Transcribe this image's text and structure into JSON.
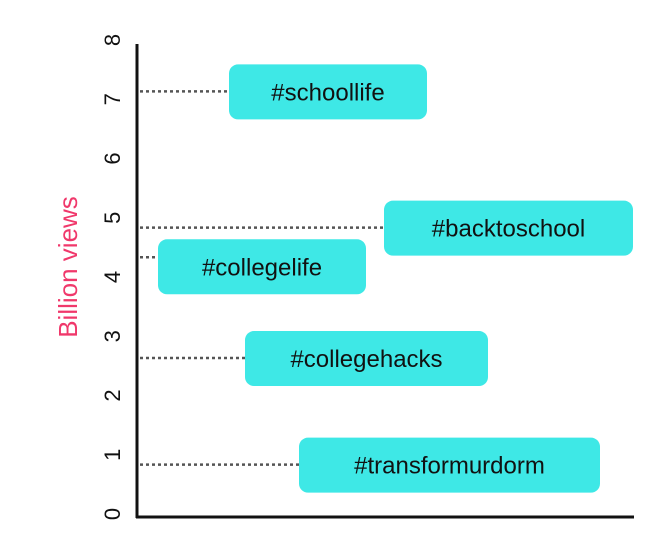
{
  "chart_data": {
    "type": "scatter",
    "title": "",
    "xlabel": "",
    "ylabel": "Billion views",
    "ylim": [
      0,
      8
    ],
    "yticks": [
      "0",
      "1",
      "2",
      "3",
      "4",
      "5",
      "6",
      "7",
      "8"
    ],
    "grid": false,
    "points": [
      {
        "label": "#schoollife",
        "y": 7.2
      },
      {
        "label": "#backtoschool",
        "y": 4.9
      },
      {
        "label": "#collegelife",
        "y": 4.4
      },
      {
        "label": "#collegehacks",
        "y": 2.7
      },
      {
        "label": "#transformurdorm",
        "y": 0.9
      }
    ],
    "colors": {
      "label_box": "#3ee8e6",
      "ylabel": "#f0386b",
      "axis": "#111111",
      "leader": "#555555"
    }
  }
}
